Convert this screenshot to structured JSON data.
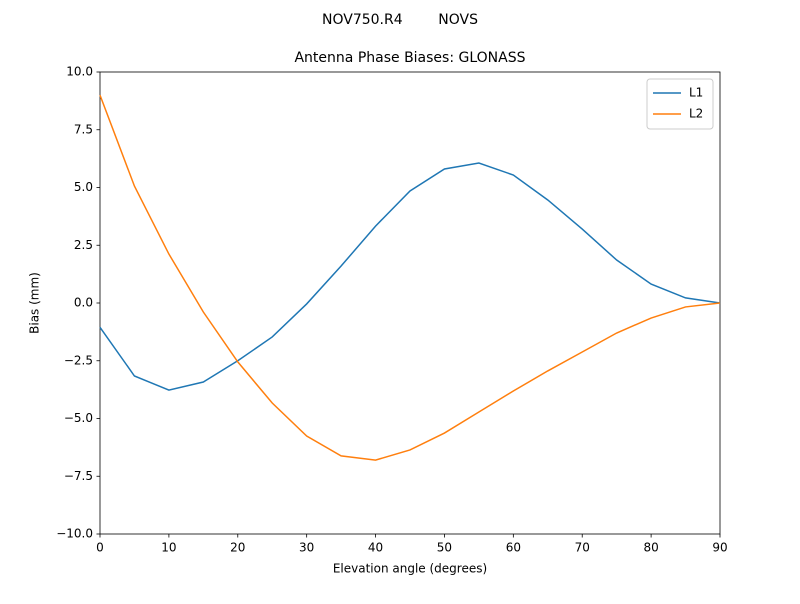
{
  "chart_data": {
    "type": "line",
    "suptitle": "NOV750.R4        NOVS",
    "title": "Antenna Phase Biases: GLONASS",
    "x_label": "Elevation angle (degrees)",
    "y_label": "Bias (mm)",
    "x": [
      0,
      5,
      10,
      15,
      20,
      25,
      30,
      35,
      40,
      45,
      50,
      55,
      60,
      65,
      70,
      75,
      80,
      85,
      90
    ],
    "series": [
      {
        "name": "L1",
        "color": "#1f77b4",
        "values": [
          -1.05,
          -3.16,
          -3.77,
          -3.42,
          -2.5,
          -1.47,
          -0.04,
          1.6,
          3.33,
          4.85,
          5.8,
          6.06,
          5.54,
          4.46,
          3.2,
          1.86,
          0.82,
          0.22,
          0
        ]
      },
      {
        "name": "L2",
        "color": "#ff7f0e",
        "values": [
          9.0,
          5.06,
          2.12,
          -0.39,
          -2.55,
          -4.33,
          -5.76,
          -6.62,
          -6.8,
          -6.36,
          -5.63,
          -4.72,
          -3.81,
          -2.94,
          -2.12,
          -1.3,
          -0.65,
          -0.17,
          0
        ]
      }
    ],
    "xlim": [
      0,
      90
    ],
    "xticks": [
      0,
      10,
      20,
      30,
      40,
      50,
      60,
      70,
      80,
      90
    ],
    "ylim": [
      -10,
      10
    ],
    "yticks": [
      {
        "value": -10,
        "label": "−10.0"
      },
      {
        "value": -7.5,
        "label": "−7.5"
      },
      {
        "value": -5,
        "label": "−5.0"
      },
      {
        "value": -2.5,
        "label": "−2.5"
      },
      {
        "value": 0,
        "label": "0.0"
      },
      {
        "value": 2.5,
        "label": "2.5"
      },
      {
        "value": 5,
        "label": "5.0"
      },
      {
        "value": 7.5,
        "label": "7.5"
      },
      {
        "value": 10,
        "label": "10.0"
      }
    ],
    "grid": false,
    "legend": "upper right"
  }
}
